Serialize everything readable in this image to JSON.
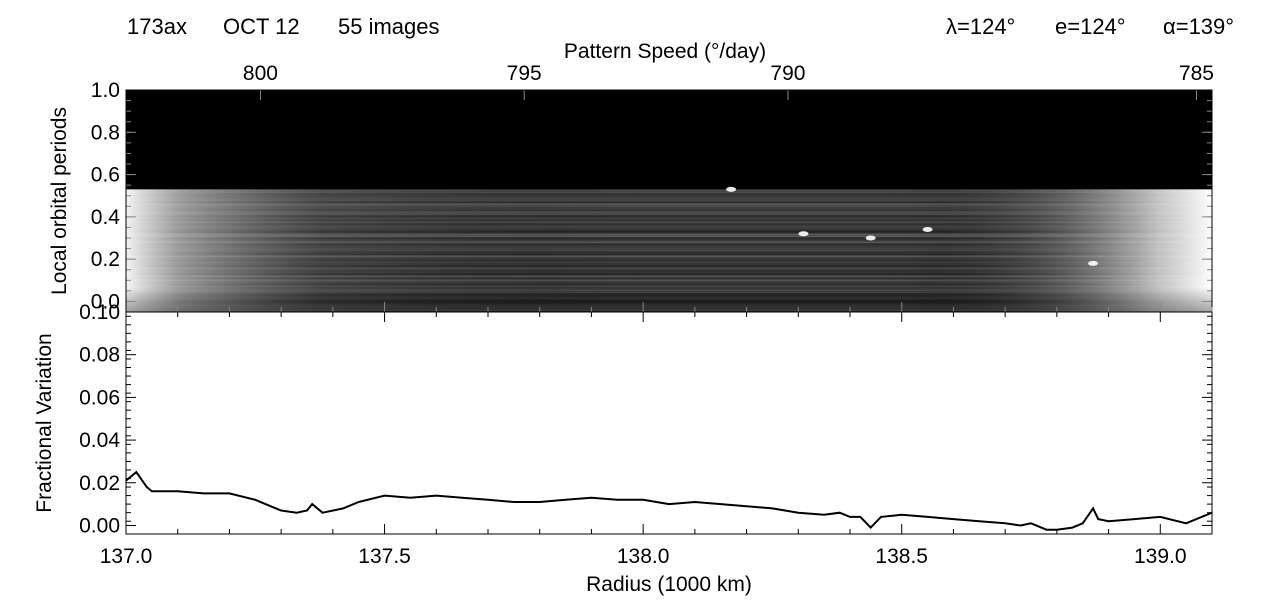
{
  "header": {
    "observation_id": "173ax",
    "date": "OCT 12",
    "image_count": "55 images",
    "lambda": "λ=124°",
    "emission": "e=124°",
    "alpha": "α=139°"
  },
  "chart_data": [
    {
      "type": "heatmap",
      "panel": "top",
      "xlabel": "",
      "ylabel": "Local orbital periods",
      "top_axis_label": "Pattern Speed (°/day)",
      "x_range": [
        137.0,
        139.1
      ],
      "ylim": [
        -0.05,
        1.0
      ],
      "yticks": [
        0.0,
        0.2,
        0.4,
        0.6,
        0.8,
        1.0
      ],
      "ytick_labels": [
        "0.0",
        "0.2",
        "0.4",
        "0.6",
        "0.8",
        "1.0"
      ],
      "top_ticks": [
        800,
        795,
        790,
        785
      ],
      "top_tick_labels": [
        "800",
        "795",
        "790",
        "785"
      ],
      "top_tick_radius": [
        137.26,
        137.77,
        138.28,
        139.07
      ],
      "data_top_y": 0.53,
      "colormap": "grayscale",
      "bright_spots": [
        {
          "x": 138.31,
          "y": 0.32
        },
        {
          "x": 138.44,
          "y": 0.3
        },
        {
          "x": 138.87,
          "y": 0.18
        },
        {
          "x": 138.55,
          "y": 0.34
        },
        {
          "x": 138.17,
          "y": 0.53
        }
      ]
    },
    {
      "type": "line",
      "panel": "bottom",
      "xlabel": "Radius (1000 km)",
      "ylabel": "Fractional Variation",
      "xlim": [
        137.0,
        139.1
      ],
      "ylim": [
        -0.004,
        0.1
      ],
      "xticks": [
        137.0,
        137.5,
        138.0,
        138.5,
        139.0
      ],
      "xtick_labels": [
        "137.0",
        "137.5",
        "138.0",
        "138.5",
        "139.0"
      ],
      "yticks": [
        0.0,
        0.02,
        0.04,
        0.06,
        0.08,
        0.1
      ],
      "ytick_labels": [
        "0.00",
        "0.02",
        "0.04",
        "0.06",
        "0.08",
        "0.10"
      ],
      "series": [
        {
          "x": [
            137.0,
            137.02,
            137.04,
            137.05,
            137.1,
            137.15,
            137.2,
            137.25,
            137.28,
            137.3,
            137.33,
            137.35,
            137.36,
            137.38,
            137.42,
            137.45,
            137.5,
            137.55,
            137.6,
            137.65,
            137.7,
            137.75,
            137.8,
            137.85,
            137.9,
            137.95,
            138.0,
            138.05,
            138.1,
            138.15,
            138.2,
            138.25,
            138.3,
            138.35,
            138.38,
            138.4,
            138.42,
            138.44,
            138.46,
            138.5,
            138.55,
            138.6,
            138.65,
            138.7,
            138.73,
            138.75,
            138.78,
            138.8,
            138.83,
            138.85,
            138.87,
            138.88,
            138.9,
            138.95,
            139.0,
            139.05,
            139.1
          ],
          "values": [
            0.021,
            0.025,
            0.018,
            0.016,
            0.016,
            0.015,
            0.015,
            0.012,
            0.009,
            0.007,
            0.006,
            0.007,
            0.01,
            0.006,
            0.008,
            0.011,
            0.014,
            0.013,
            0.014,
            0.013,
            0.012,
            0.011,
            0.011,
            0.012,
            0.013,
            0.012,
            0.012,
            0.01,
            0.011,
            0.01,
            0.009,
            0.008,
            0.006,
            0.005,
            0.006,
            0.004,
            0.004,
            -0.001,
            0.004,
            0.005,
            0.004,
            0.003,
            0.002,
            0.001,
            0.0,
            0.001,
            -0.002,
            -0.002,
            -0.001,
            0.001,
            0.008,
            0.003,
            0.002,
            0.003,
            0.004,
            0.001,
            0.006
          ]
        }
      ]
    }
  ]
}
